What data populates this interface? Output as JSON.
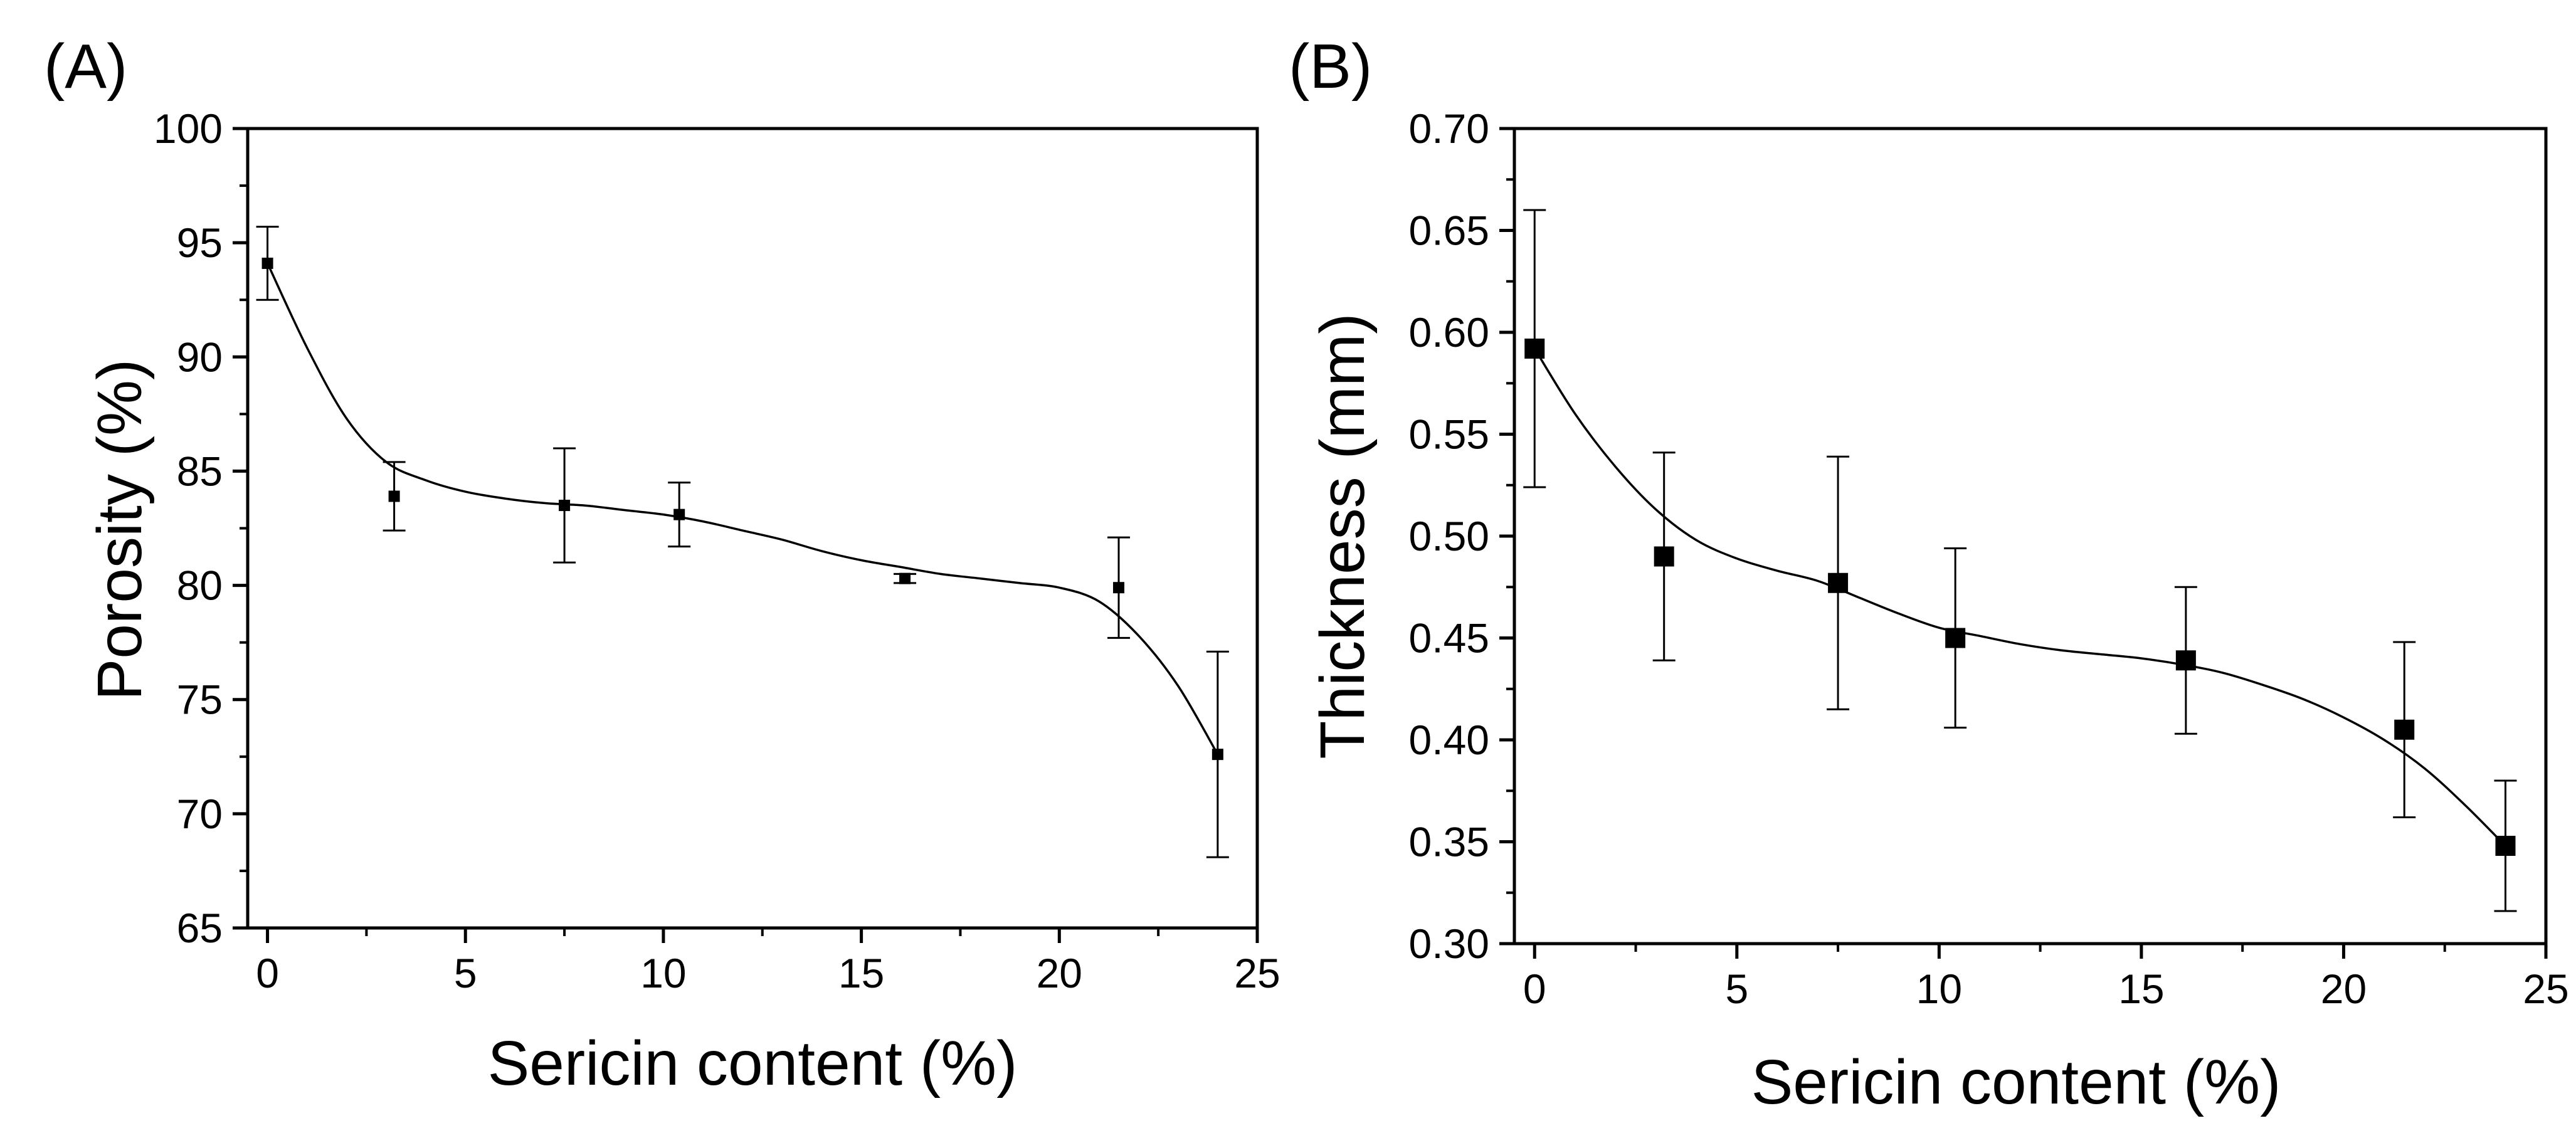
{
  "colors": {
    "ink": "#000000",
    "background": "#ffffff"
  },
  "chart_data": [
    {
      "type": "scatter",
      "panel_label": "(A)",
      "xlabel": "Sericin content (%)",
      "ylabel": "Porosity (%)",
      "xlim": [
        -0.5,
        25
      ],
      "ylim": [
        65,
        100
      ],
      "xticks": [
        "0",
        "5",
        "10",
        "15",
        "20",
        "25"
      ],
      "yticks": [
        "65",
        "70",
        "75",
        "80",
        "85",
        "90",
        "95",
        "100"
      ],
      "grid": false,
      "series": [
        {
          "name": "Porosity",
          "marker": "square",
          "x": [
            0,
            3.2,
            7.5,
            10.4,
            16.1,
            21.5,
            24
          ],
          "y": [
            94.1,
            83.9,
            83.5,
            83.1,
            80.3,
            79.9,
            72.6
          ],
          "error": [
            1.6,
            1.5,
            2.5,
            1.4,
            0.2,
            2.2,
            4.5
          ]
        }
      ],
      "fit_curve": {
        "x": [
          0,
          1,
          2,
          3,
          4,
          5,
          6,
          7,
          8,
          9,
          10,
          11,
          12,
          13,
          14,
          15,
          16,
          17,
          18,
          19,
          20,
          21,
          22,
          23,
          24
        ],
        "y": [
          94.1,
          90.4,
          87.3,
          85.4,
          84.6,
          84.1,
          83.8,
          83.6,
          83.5,
          83.3,
          83.1,
          82.8,
          82.4,
          82.0,
          81.5,
          81.1,
          80.8,
          80.5,
          80.3,
          80.1,
          79.9,
          79.3,
          77.8,
          75.6,
          72.6
        ]
      }
    },
    {
      "type": "scatter",
      "panel_label": "(B)",
      "xlabel": "Sericin content (%)",
      "ylabel": "Thickness (mm)",
      "xlim": [
        -0.5,
        25
      ],
      "ylim": [
        0.3,
        0.7
      ],
      "xticks": [
        "0",
        "5",
        "10",
        "15",
        "20",
        "25"
      ],
      "yticks": [
        "0.30",
        "0.35",
        "0.40",
        "0.45",
        "0.50",
        "0.55",
        "0.60",
        "0.65",
        "0.70"
      ],
      "grid": false,
      "series": [
        {
          "name": "Thickness",
          "marker": "square",
          "x": [
            0,
            3.2,
            7.5,
            10.4,
            16.1,
            21.5,
            24
          ],
          "y": [
            0.592,
            0.49,
            0.477,
            0.45,
            0.439,
            0.405,
            0.348
          ],
          "error": [
            0.068,
            0.051,
            0.062,
            0.044,
            0.036,
            0.043,
            0.032
          ]
        }
      ],
      "fit_curve": {
        "x": [
          0,
          1,
          2,
          3,
          4,
          5,
          6,
          7,
          8,
          9,
          10,
          11,
          12,
          13,
          14,
          15,
          16,
          17,
          18,
          19,
          20,
          21,
          22,
          23,
          24
        ],
        "y": [
          0.592,
          0.56,
          0.534,
          0.513,
          0.498,
          0.489,
          0.483,
          0.478,
          0.47,
          0.462,
          0.455,
          0.451,
          0.447,
          0.444,
          0.442,
          0.44,
          0.437,
          0.433,
          0.427,
          0.42,
          0.411,
          0.4,
          0.386,
          0.368,
          0.348
        ]
      }
    }
  ]
}
